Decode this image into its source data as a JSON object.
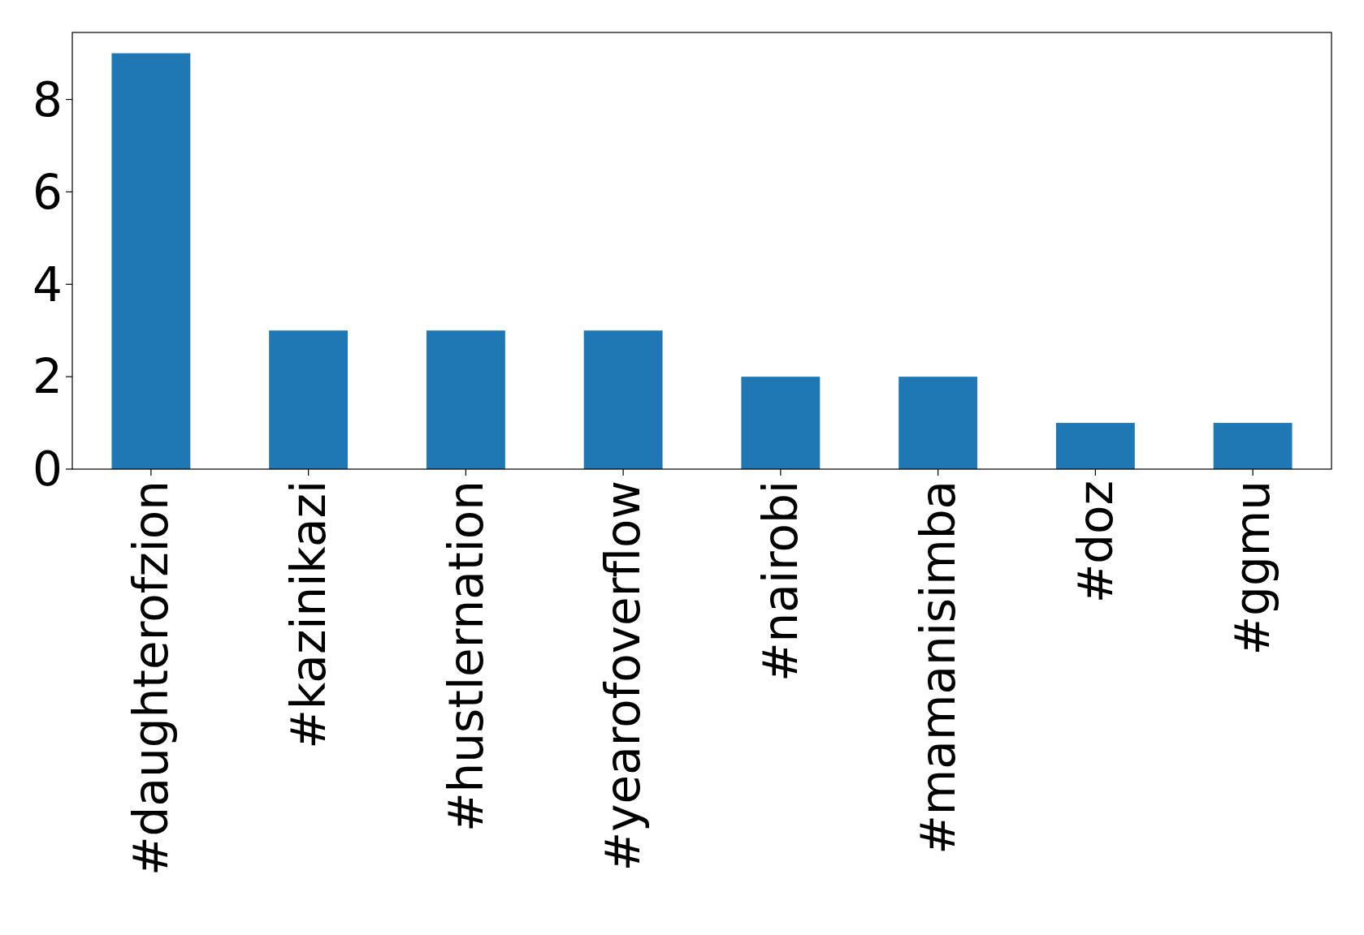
{
  "chart_data": {
    "type": "bar",
    "categories": [
      "#daughterofzion",
      "#kazinikazi",
      "#hustlernation",
      "#yearofoverflow",
      "#nairobi",
      "#mamanisimba",
      "#doz",
      "#ggmu"
    ],
    "values": [
      9,
      3,
      3,
      3,
      2,
      2,
      1,
      1
    ],
    "color": "#1f77b4",
    "ylim": [
      0,
      9.45
    ],
    "yticks": [
      0,
      2,
      4,
      6,
      8
    ],
    "grid": false
  }
}
